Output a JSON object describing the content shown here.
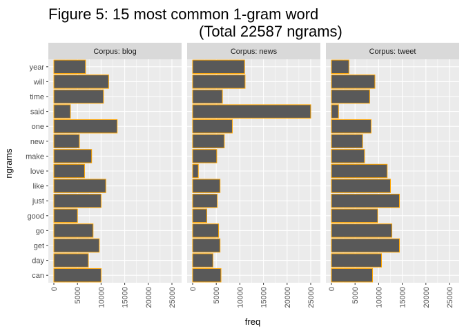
{
  "chart_data": {
    "type": "bar",
    "orientation": "horizontal",
    "title_line1": "Figure 5: 15 most common 1-gram word",
    "title_line2": "(Total 22587 ngrams)",
    "xlabel": "freq",
    "ylabel": "ngrams",
    "xlim": [
      0,
      25000
    ],
    "x_ticks": [
      0,
      5000,
      10000,
      15000,
      20000,
      25000
    ],
    "grid": true,
    "categories": [
      "can",
      "day",
      "get",
      "go",
      "good",
      "just",
      "like",
      "love",
      "make",
      "new",
      "one",
      "said",
      "time",
      "will",
      "year"
    ],
    "panels": [
      {
        "label": "Corpus: blog",
        "values": [
          10000,
          7300,
          9600,
          8300,
          5000,
          10000,
          11000,
          6500,
          8000,
          5400,
          13400,
          3500,
          10500,
          11600,
          6700
        ]
      },
      {
        "label": "Corpus: news",
        "values": [
          6000,
          4300,
          5800,
          5500,
          3000,
          5200,
          5800,
          1200,
          5100,
          6700,
          8400,
          25000,
          6300,
          11100,
          11000
        ]
      },
      {
        "label": "Corpus: tweet",
        "values": [
          8700,
          10600,
          14400,
          12800,
          9800,
          14400,
          12500,
          11800,
          7000,
          6600,
          8400,
          1500,
          8100,
          9200,
          3700
        ]
      }
    ],
    "colors": {
      "bar_fill": "#595959",
      "bar_outline": "#FFA500",
      "panel_bg": "#EBEBEB",
      "strip_bg": "#D9D9D9",
      "grid": "#FFFFFF"
    }
  }
}
